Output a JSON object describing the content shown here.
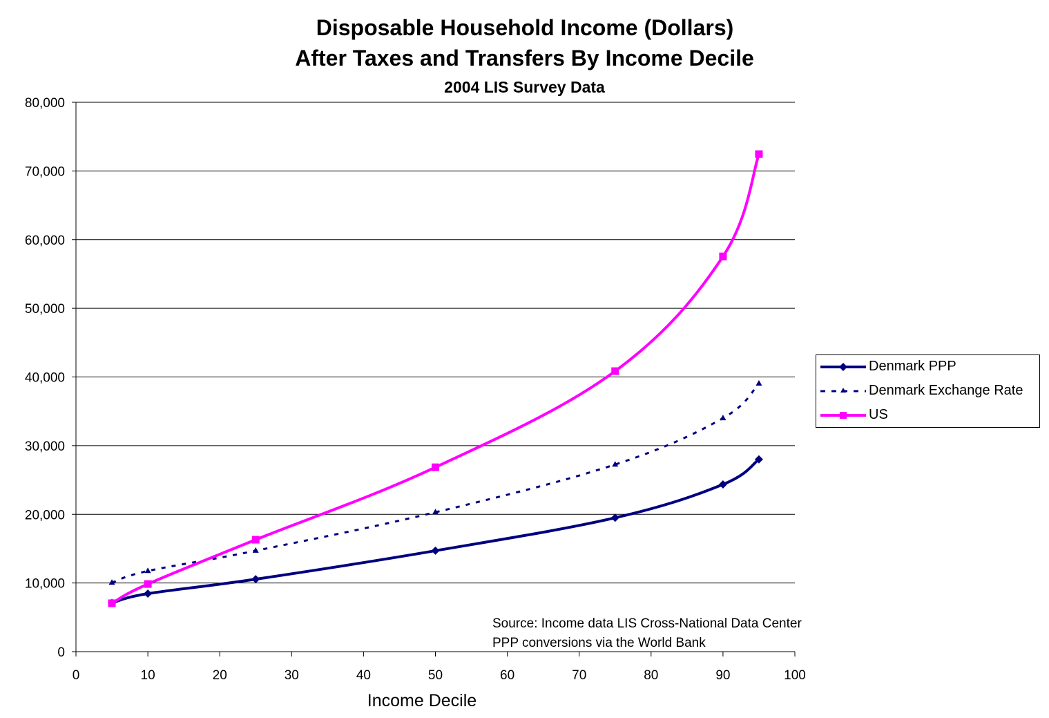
{
  "chart": {
    "title_line1": "Disposable Household Income (Dollars)",
    "title_line2": "After Taxes and Transfers By Income Decile",
    "subtitle": "2004 LIS Survey Data",
    "xlabel": "Income Decile",
    "source_line1": "Source:  Income data LIS Cross-National Data Center",
    "source_line2": "PPP conversions via the World Bank",
    "y_ticks": [
      "0",
      "10,000",
      "20,000",
      "30,000",
      "40,000",
      "50,000",
      "60,000",
      "70,000",
      "80,000"
    ],
    "x_ticks": [
      "0",
      "10",
      "20",
      "30",
      "40",
      "50",
      "60",
      "70",
      "80",
      "90",
      "100"
    ],
    "legend": [
      {
        "label": "Denmark PPP",
        "color": "#000080",
        "style": "solid",
        "marker": "diamond"
      },
      {
        "label": "Denmark Exchange Rate",
        "color": "#000080",
        "style": "dashed",
        "marker": "triangle"
      },
      {
        "label": "US",
        "color": "#FF00FF",
        "style": "solid",
        "marker": "square"
      }
    ]
  },
  "chart_data": {
    "type": "line",
    "title": "Disposable Household Income (Dollars) After Taxes and Transfers By Income Decile",
    "subtitle": "2004 LIS Survey Data",
    "xlabel": "Income Decile",
    "ylabel": "",
    "xlim": [
      0,
      100
    ],
    "ylim": [
      0,
      80000
    ],
    "y_tick_step": 10000,
    "x_tick_step": 10,
    "grid": "horizontal major gridlines",
    "legend_position": "right",
    "x": [
      5,
      10,
      25,
      50,
      75,
      90,
      95
    ],
    "series": [
      {
        "name": "Denmark PPP",
        "color": "#000080",
        "line": "solid",
        "marker": "diamond",
        "values": [
          7100,
          8450,
          10550,
          14700,
          19500,
          24350,
          28000
        ]
      },
      {
        "name": "Denmark Exchange Rate",
        "color": "#000080",
        "line": "dashed",
        "marker": "triangle",
        "values": [
          10050,
          11750,
          14700,
          20300,
          27250,
          34000,
          39050
        ]
      },
      {
        "name": "US",
        "color": "#FF00FF",
        "line": "solid",
        "marker": "square",
        "values": [
          7050,
          9850,
          16300,
          26850,
          40850,
          57550,
          72450
        ]
      }
    ],
    "annotations": [
      "Source:  Income data LIS Cross-National Data Center",
      "PPP conversions via the World Bank"
    ]
  }
}
